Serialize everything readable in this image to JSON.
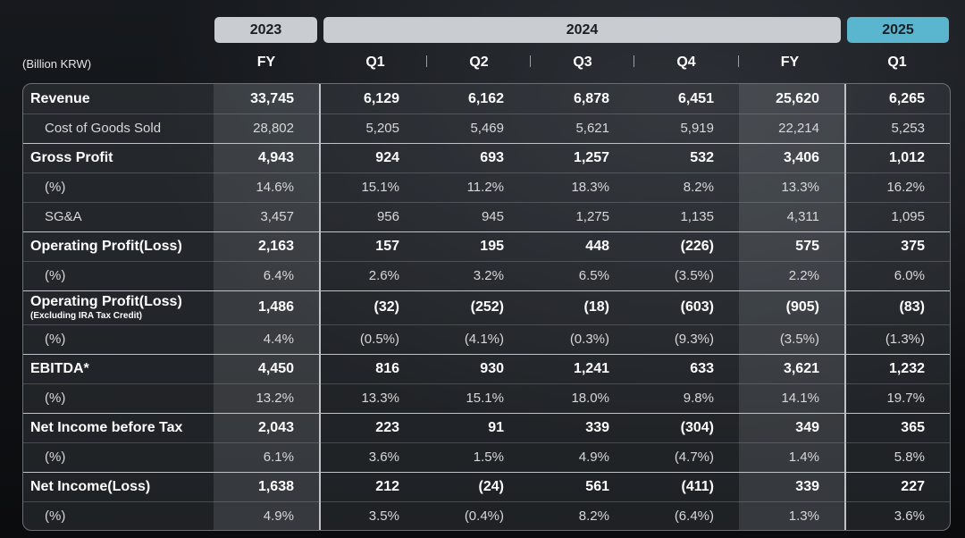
{
  "header": {
    "unit_label": "(Billion KRW)",
    "years": [
      {
        "label": "2023"
      },
      {
        "label": "2024"
      },
      {
        "label": "2025"
      }
    ],
    "columns": [
      "FY",
      "Q1",
      "Q2",
      "Q3",
      "Q4",
      "FY",
      "Q1"
    ]
  },
  "rows": [
    {
      "label": "Revenue",
      "kind": "main",
      "values": [
        "33,745",
        "6,129",
        "6,162",
        "6,878",
        "6,451",
        "25,620",
        "6,265"
      ]
    },
    {
      "label": "Cost of Goods Sold",
      "kind": "sub",
      "values": [
        "28,802",
        "5,205",
        "5,469",
        "5,621",
        "5,919",
        "22,214",
        "5,253"
      ]
    },
    {
      "label": "Gross Profit",
      "kind": "main",
      "values": [
        "4,943",
        "924",
        "693",
        "1,257",
        "532",
        "3,406",
        "1,012"
      ]
    },
    {
      "label": "(%)",
      "kind": "sub",
      "values": [
        "14.6%",
        "15.1%",
        "11.2%",
        "18.3%",
        "8.2%",
        "13.3%",
        "16.2%"
      ]
    },
    {
      "label": "SG&A",
      "kind": "sub",
      "values": [
        "3,457",
        "956",
        "945",
        "1,275",
        "1,135",
        "4,311",
        "1,095"
      ]
    },
    {
      "label": "Operating Profit(Loss)",
      "kind": "main",
      "values": [
        "2,163",
        "157",
        "195",
        "448",
        "(226)",
        "575",
        "375"
      ]
    },
    {
      "label": "(%)",
      "kind": "sub",
      "values": [
        "6.4%",
        "2.6%",
        "3.2%",
        "6.5%",
        "(3.5%)",
        "2.2%",
        "6.0%"
      ]
    },
    {
      "label": "Operating Profit(Loss)",
      "note": "(Excluding IRA Tax Credit)",
      "kind": "main",
      "values": [
        "1,486",
        "(32)",
        "(252)",
        "(18)",
        "(603)",
        "(905)",
        "(83)"
      ]
    },
    {
      "label": "(%)",
      "kind": "sub",
      "values": [
        "4.4%",
        "(0.5%)",
        "(4.1%)",
        "(0.3%)",
        "(9.3%)",
        "(3.5%)",
        "(1.3%)"
      ]
    },
    {
      "label": "EBITDA*",
      "kind": "main",
      "values": [
        "4,450",
        "816",
        "930",
        "1,241",
        "633",
        "3,621",
        "1,232"
      ]
    },
    {
      "label": "(%)",
      "kind": "sub",
      "values": [
        "13.2%",
        "13.3%",
        "15.1%",
        "18.0%",
        "9.8%",
        "14.1%",
        "19.7%"
      ]
    },
    {
      "label": "Net Income before Tax",
      "kind": "main",
      "values": [
        "2,043",
        "223",
        "91",
        "339",
        "(304)",
        "349",
        "365"
      ]
    },
    {
      "label": "(%)",
      "kind": "sub",
      "values": [
        "6.1%",
        "3.6%",
        "1.5%",
        "4.9%",
        "(4.7%)",
        "1.4%",
        "5.8%"
      ]
    },
    {
      "label": "Net Income(Loss)",
      "kind": "main",
      "values": [
        "1,638",
        "212",
        "(24)",
        "561",
        "(411)",
        "339",
        "227"
      ]
    },
    {
      "label": "(%)",
      "kind": "sub",
      "values": [
        "4.9%",
        "3.5%",
        "(0.4%)",
        "8.2%",
        "(6.4%)",
        "1.3%",
        "3.6%"
      ]
    }
  ]
}
